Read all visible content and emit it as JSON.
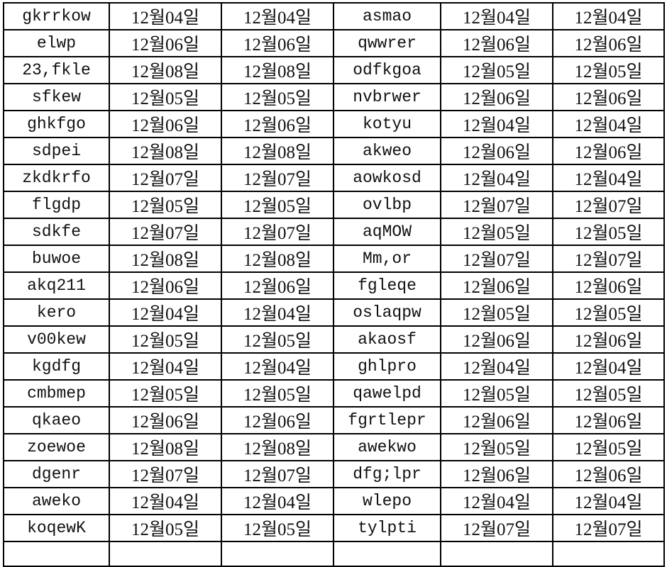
{
  "table": {
    "rows": [
      [
        "gkrrkow",
        "12월04일",
        "12월04일",
        "asmao",
        "12월04일",
        "12월04일"
      ],
      [
        "elwp",
        "12월06일",
        "12월06일",
        "qwwrer",
        "12월06일",
        "12월06일"
      ],
      [
        "23,fkle",
        "12월08일",
        "12월08일",
        "odfkgoa",
        "12월05일",
        "12월05일"
      ],
      [
        "sfkew",
        "12월05일",
        "12월05일",
        "nvbrwer",
        "12월06일",
        "12월06일"
      ],
      [
        "ghkfgo",
        "12월06일",
        "12월06일",
        "kotyu",
        "12월04일",
        "12월04일"
      ],
      [
        "sdpei",
        "12월08일",
        "12월08일",
        "akweo",
        "12월06일",
        "12월06일"
      ],
      [
        "zkdkrfo",
        "12월07일",
        "12월07일",
        "aowkosd",
        "12월04일",
        "12월04일"
      ],
      [
        "flgdp",
        "12월05일",
        "12월05일",
        "ovlbp",
        "12월07일",
        "12월07일"
      ],
      [
        "sdkfe",
        "12월07일",
        "12월07일",
        "aqMOW",
        "12월05일",
        "12월05일"
      ],
      [
        "buwoe",
        "12월08일",
        "12월08일",
        "Mm,or",
        "12월07일",
        "12월07일"
      ],
      [
        "akq211",
        "12월06일",
        "12월06일",
        "fgleqe",
        "12월06일",
        "12월06일"
      ],
      [
        "kero",
        "12월04일",
        "12월04일",
        "oslaqpw",
        "12월05일",
        "12월05일"
      ],
      [
        "v00kew",
        "12월05일",
        "12월05일",
        "akaosf",
        "12월06일",
        "12월06일"
      ],
      [
        "kgdfg",
        "12월04일",
        "12월04일",
        "ghlpro",
        "12월04일",
        "12월04일"
      ],
      [
        "cmbmep",
        "12월05일",
        "12월05일",
        "qawelpd",
        "12월05일",
        "12월05일"
      ],
      [
        "qkaeo",
        "12월06일",
        "12월06일",
        "fgrtlepr",
        "12월06일",
        "12월06일"
      ],
      [
        "zoewoe",
        "12월08일",
        "12월08일",
        "awekwo",
        "12월05일",
        "12월05일"
      ],
      [
        "dgenr",
        "12월07일",
        "12월07일",
        "dfg;lpr",
        "12월06일",
        "12월06일"
      ],
      [
        "aweko",
        "12월04일",
        "12월04일",
        "wlepo",
        "12월04일",
        "12월04일"
      ],
      [
        "koqewK",
        "12월05일",
        "12월05일",
        "tylpti",
        "12월07일",
        "12월07일"
      ]
    ]
  }
}
